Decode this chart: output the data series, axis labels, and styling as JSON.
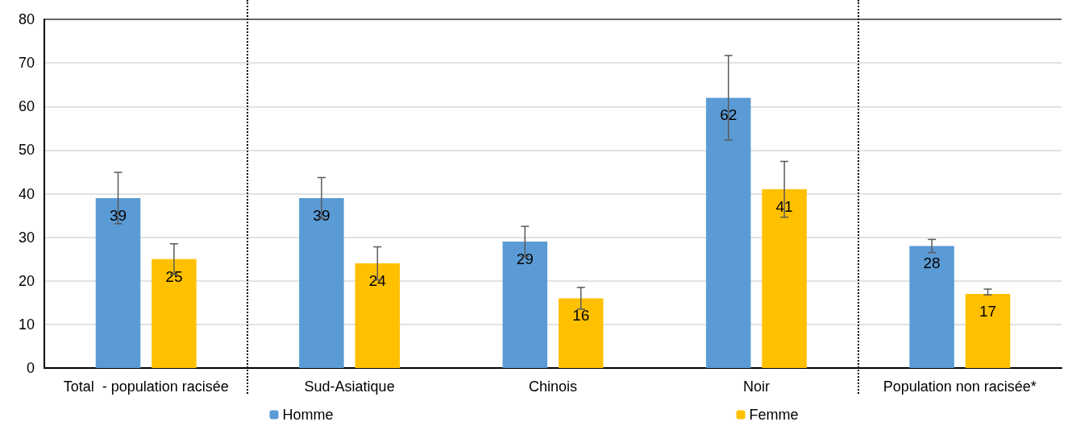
{
  "chart_data": {
    "type": "bar",
    "categories": [
      "Total  - population racisée",
      "Sud-Asiatique",
      "Chinois",
      "Noir",
      "Population non racisée*"
    ],
    "series": [
      {
        "name": "Homme",
        "color": "#5b9bd5",
        "values": [
          39,
          39,
          29,
          62,
          28
        ],
        "errors": [
          5.9,
          4.7,
          3.5,
          9.7,
          1.5
        ]
      },
      {
        "name": "Femme",
        "color": "#ffc000",
        "values": [
          25,
          24,
          16,
          41,
          17
        ],
        "errors": [
          3.5,
          3.8,
          2.5,
          6.4,
          [
            16.8,
            18.1
          ]
        ]
      }
    ],
    "ylim": [
      0,
      80
    ],
    "yticks": [
      0,
      10,
      20,
      30,
      40,
      50,
      60,
      70,
      80
    ],
    "grid": "y",
    "legend": "bottom",
    "data_labels": true
  }
}
